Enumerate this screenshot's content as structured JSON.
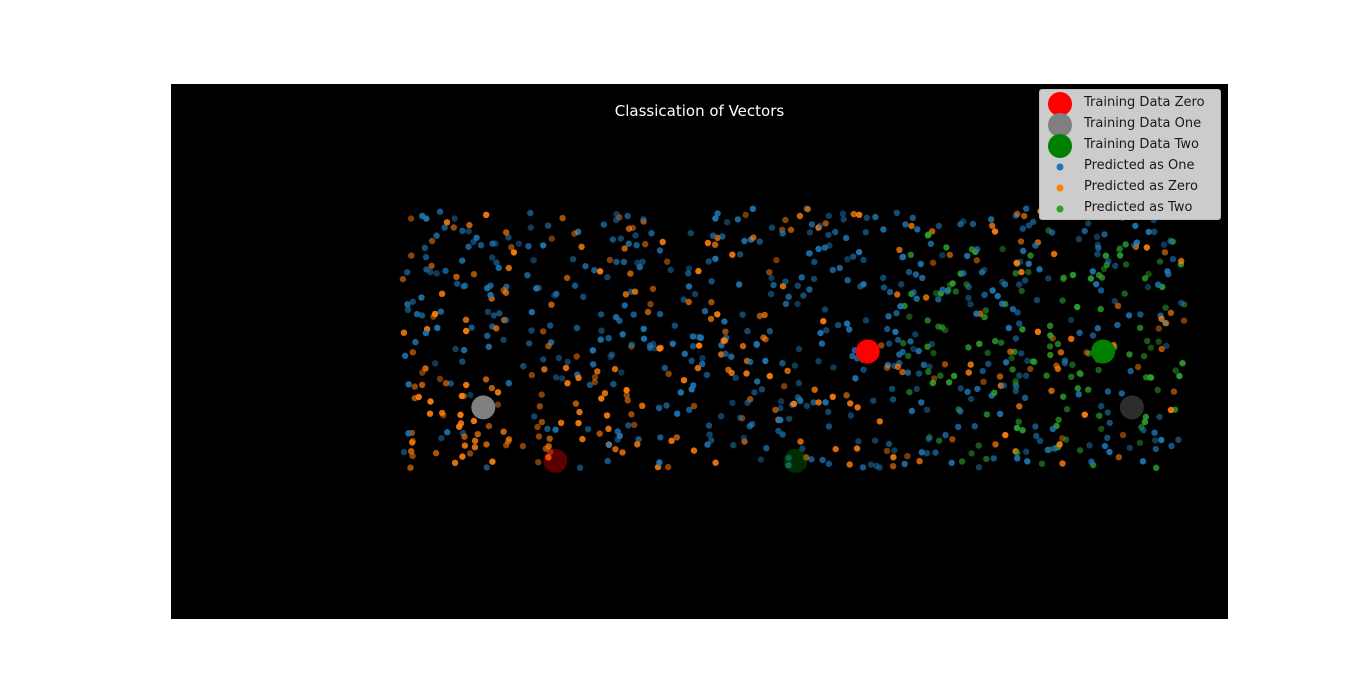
{
  "chart_data": {
    "type": "scatter",
    "title": "Classication of Vectors",
    "xlabel": "",
    "ylabel": "",
    "axes_visible": false,
    "background": "#000000",
    "xlim": [
      -1.1,
      1.1
    ],
    "ylim": [
      -1.1,
      1.1
    ],
    "legend_position": "top-right",
    "training_points": [
      {
        "name": "Training Data Zero",
        "color": "#ff0000",
        "points": [
          [
            0.35,
            0.0
          ],
          [
            -0.3,
            -0.45
          ]
        ]
      },
      {
        "name": "Training Data One",
        "color": "#808080",
        "points": [
          [
            -0.45,
            -0.23
          ],
          [
            0.9,
            -0.23
          ]
        ]
      },
      {
        "name": "Training Data Two",
        "color": "#008000",
        "points": [
          [
            0.84,
            0.0
          ],
          [
            0.2,
            -0.45
          ]
        ]
      }
    ],
    "series": [
      {
        "name": "Predicted as One",
        "color": "#1f77b4",
        "count": 520
      },
      {
        "name": "Predicted as Zero",
        "color": "#ff7f0e",
        "count": 290
      },
      {
        "name": "Predicted as Two",
        "color": "#2ca02c",
        "count": 140
      }
    ]
  },
  "legend": {
    "items": [
      {
        "label": "Training Data Zero",
        "color": "#ff0000",
        "kind": "large"
      },
      {
        "label": "Training Data One",
        "color": "#808080",
        "kind": "large"
      },
      {
        "label": "Training Data Two",
        "color": "#008000",
        "kind": "large"
      },
      {
        "label": "Predicted as One",
        "color": "#1f77b4",
        "kind": "small"
      },
      {
        "label": "Predicted as Zero",
        "color": "#ff7f0e",
        "kind": "small"
      },
      {
        "label": "Predicted as Two",
        "color": "#2ca02c",
        "kind": "small"
      }
    ]
  }
}
